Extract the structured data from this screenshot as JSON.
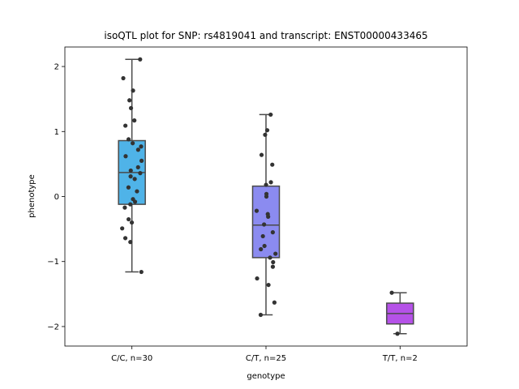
{
  "chart_data": {
    "type": "box",
    "title": "isoQTL plot for SNP: rs4819041 and transcript: ENST00000433465",
    "xlabel": "genotype",
    "ylabel": "phenotype",
    "ylim": [
      -2.3,
      2.3
    ],
    "yticks": [
      -2,
      -1,
      0,
      1,
      2
    ],
    "grid": false,
    "groups": [
      {
        "label": "C/C, n=30",
        "color": "#4fb3e8",
        "box": {
          "whisker_low": -1.16,
          "q1": -0.12,
          "median": 0.37,
          "q3": 0.86,
          "whisker_high": 2.11
        },
        "points": [
          2.11,
          1.82,
          1.63,
          1.48,
          1.36,
          1.17,
          1.09,
          0.88,
          0.82,
          0.77,
          0.72,
          0.62,
          0.55,
          0.45,
          0.4,
          0.36,
          0.31,
          0.27,
          0.14,
          0.08,
          -0.04,
          -0.08,
          -0.12,
          -0.17,
          -0.35,
          -0.4,
          -0.49,
          -0.64,
          -0.7,
          -1.16
        ]
      },
      {
        "label": "C/T, n=25",
        "color": "#8b8bf0",
        "box": {
          "whisker_low": -1.82,
          "q1": -0.94,
          "median": -0.44,
          "q3": 0.16,
          "whisker_high": 1.26
        },
        "points": [
          1.26,
          1.02,
          0.95,
          0.64,
          0.49,
          0.22,
          0.18,
          0.04,
          0.0,
          -0.22,
          -0.27,
          -0.31,
          -0.43,
          -0.55,
          -0.61,
          -0.76,
          -0.81,
          -0.88,
          -0.94,
          -1.01,
          -1.08,
          -1.26,
          -1.36,
          -1.63,
          -1.82
        ]
      },
      {
        "label": "T/T, n=2",
        "color": "#b552e8",
        "box": {
          "whisker_low": -2.11,
          "q1": -1.96,
          "median": -1.8,
          "q3": -1.64,
          "whisker_high": -1.48
        },
        "points": [
          -1.48,
          -2.11
        ]
      }
    ]
  }
}
